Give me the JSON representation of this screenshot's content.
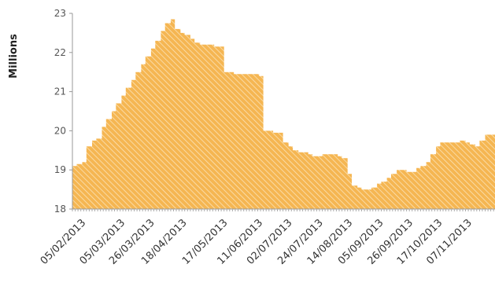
{
  "chart_data": {
    "type": "area",
    "ylabel": "Millions",
    "xlabel": "",
    "title": "",
    "ylim": [
      18,
      23
    ],
    "yticks": [
      18,
      19,
      20,
      21,
      22,
      23
    ],
    "grid": false,
    "legend": "none",
    "fill_color": "#f5b652",
    "hatch_color": "#fbe3b8",
    "tick_labels": [
      "05/02/2013",
      "05/03/2013",
      "26/03/2013",
      "18/04/2013",
      "17/05/2013",
      "11/06/2013",
      "02/07/2013",
      "24/07/2013",
      "14/08/2013",
      "05/09/2013",
      "26/09/2013",
      "17/10/2013",
      "07/11/2013"
    ],
    "x_start": "2013-01-29",
    "x_end": "2013-11-26",
    "series": [
      {
        "x": [
          "2013-01-29",
          "2013-02-01",
          "2013-02-05",
          "2013-02-08",
          "2013-02-12",
          "2013-02-15",
          "2013-02-19",
          "2013-02-22",
          "2013-02-26",
          "2013-03-01",
          "2013-03-05",
          "2013-03-08",
          "2013-03-12",
          "2013-03-15",
          "2013-03-19",
          "2013-03-22",
          "2013-03-26",
          "2013-03-29",
          "2013-04-02",
          "2013-04-05",
          "2013-04-09",
          "2013-04-12",
          "2013-04-16",
          "2013-04-19",
          "2013-04-23",
          "2013-04-26",
          "2013-04-30",
          "2013-05-03",
          "2013-05-07",
          "2013-05-10",
          "2013-05-14",
          "2013-05-17",
          "2013-05-21",
          "2013-05-24",
          "2013-05-28",
          "2013-05-31",
          "2013-06-04",
          "2013-06-07",
          "2013-06-11",
          "2013-06-14",
          "2013-06-18",
          "2013-06-21",
          "2013-06-25",
          "2013-06-28",
          "2013-07-02",
          "2013-07-05",
          "2013-07-09",
          "2013-07-12",
          "2013-07-16",
          "2013-07-19",
          "2013-07-23",
          "2013-07-26",
          "2013-07-30",
          "2013-08-02",
          "2013-08-06",
          "2013-08-09",
          "2013-08-13",
          "2013-08-16",
          "2013-08-20",
          "2013-08-23",
          "2013-08-27",
          "2013-08-30",
          "2013-09-03",
          "2013-09-06",
          "2013-09-10",
          "2013-09-13",
          "2013-09-17",
          "2013-09-20",
          "2013-09-24",
          "2013-09-27",
          "2013-10-01",
          "2013-10-04",
          "2013-10-08",
          "2013-10-11",
          "2013-10-15",
          "2013-10-18",
          "2013-10-22",
          "2013-10-25",
          "2013-10-29",
          "2013-11-01",
          "2013-11-05",
          "2013-11-08",
          "2013-11-12",
          "2013-11-15",
          "2013-11-19",
          "2013-11-22",
          "2013-11-26"
        ],
        "values": [
          19.1,
          19.15,
          19.2,
          19.6,
          19.75,
          19.8,
          20.1,
          20.3,
          20.5,
          20.7,
          20.9,
          21.1,
          21.3,
          21.5,
          21.7,
          21.9,
          22.1,
          22.3,
          22.55,
          22.75,
          22.85,
          22.6,
          22.5,
          22.45,
          22.35,
          22.25,
          22.2,
          22.2,
          22.2,
          22.15,
          22.15,
          21.5,
          21.5,
          21.45,
          21.45,
          21.45,
          21.45,
          21.45,
          21.4,
          20.0,
          20.0,
          19.95,
          19.95,
          19.7,
          19.6,
          19.5,
          19.45,
          19.45,
          19.4,
          19.35,
          19.35,
          19.4,
          19.4,
          19.4,
          19.35,
          19.3,
          18.9,
          18.6,
          18.55,
          18.5,
          18.5,
          18.55,
          18.65,
          18.7,
          18.8,
          18.9,
          19.0,
          19.0,
          18.95,
          18.95,
          19.05,
          19.1,
          19.2,
          19.4,
          19.6,
          19.7,
          19.7,
          19.7,
          19.7,
          19.75,
          19.7,
          19.65,
          19.6,
          19.75,
          19.9,
          19.9,
          19.9
        ]
      }
    ]
  }
}
